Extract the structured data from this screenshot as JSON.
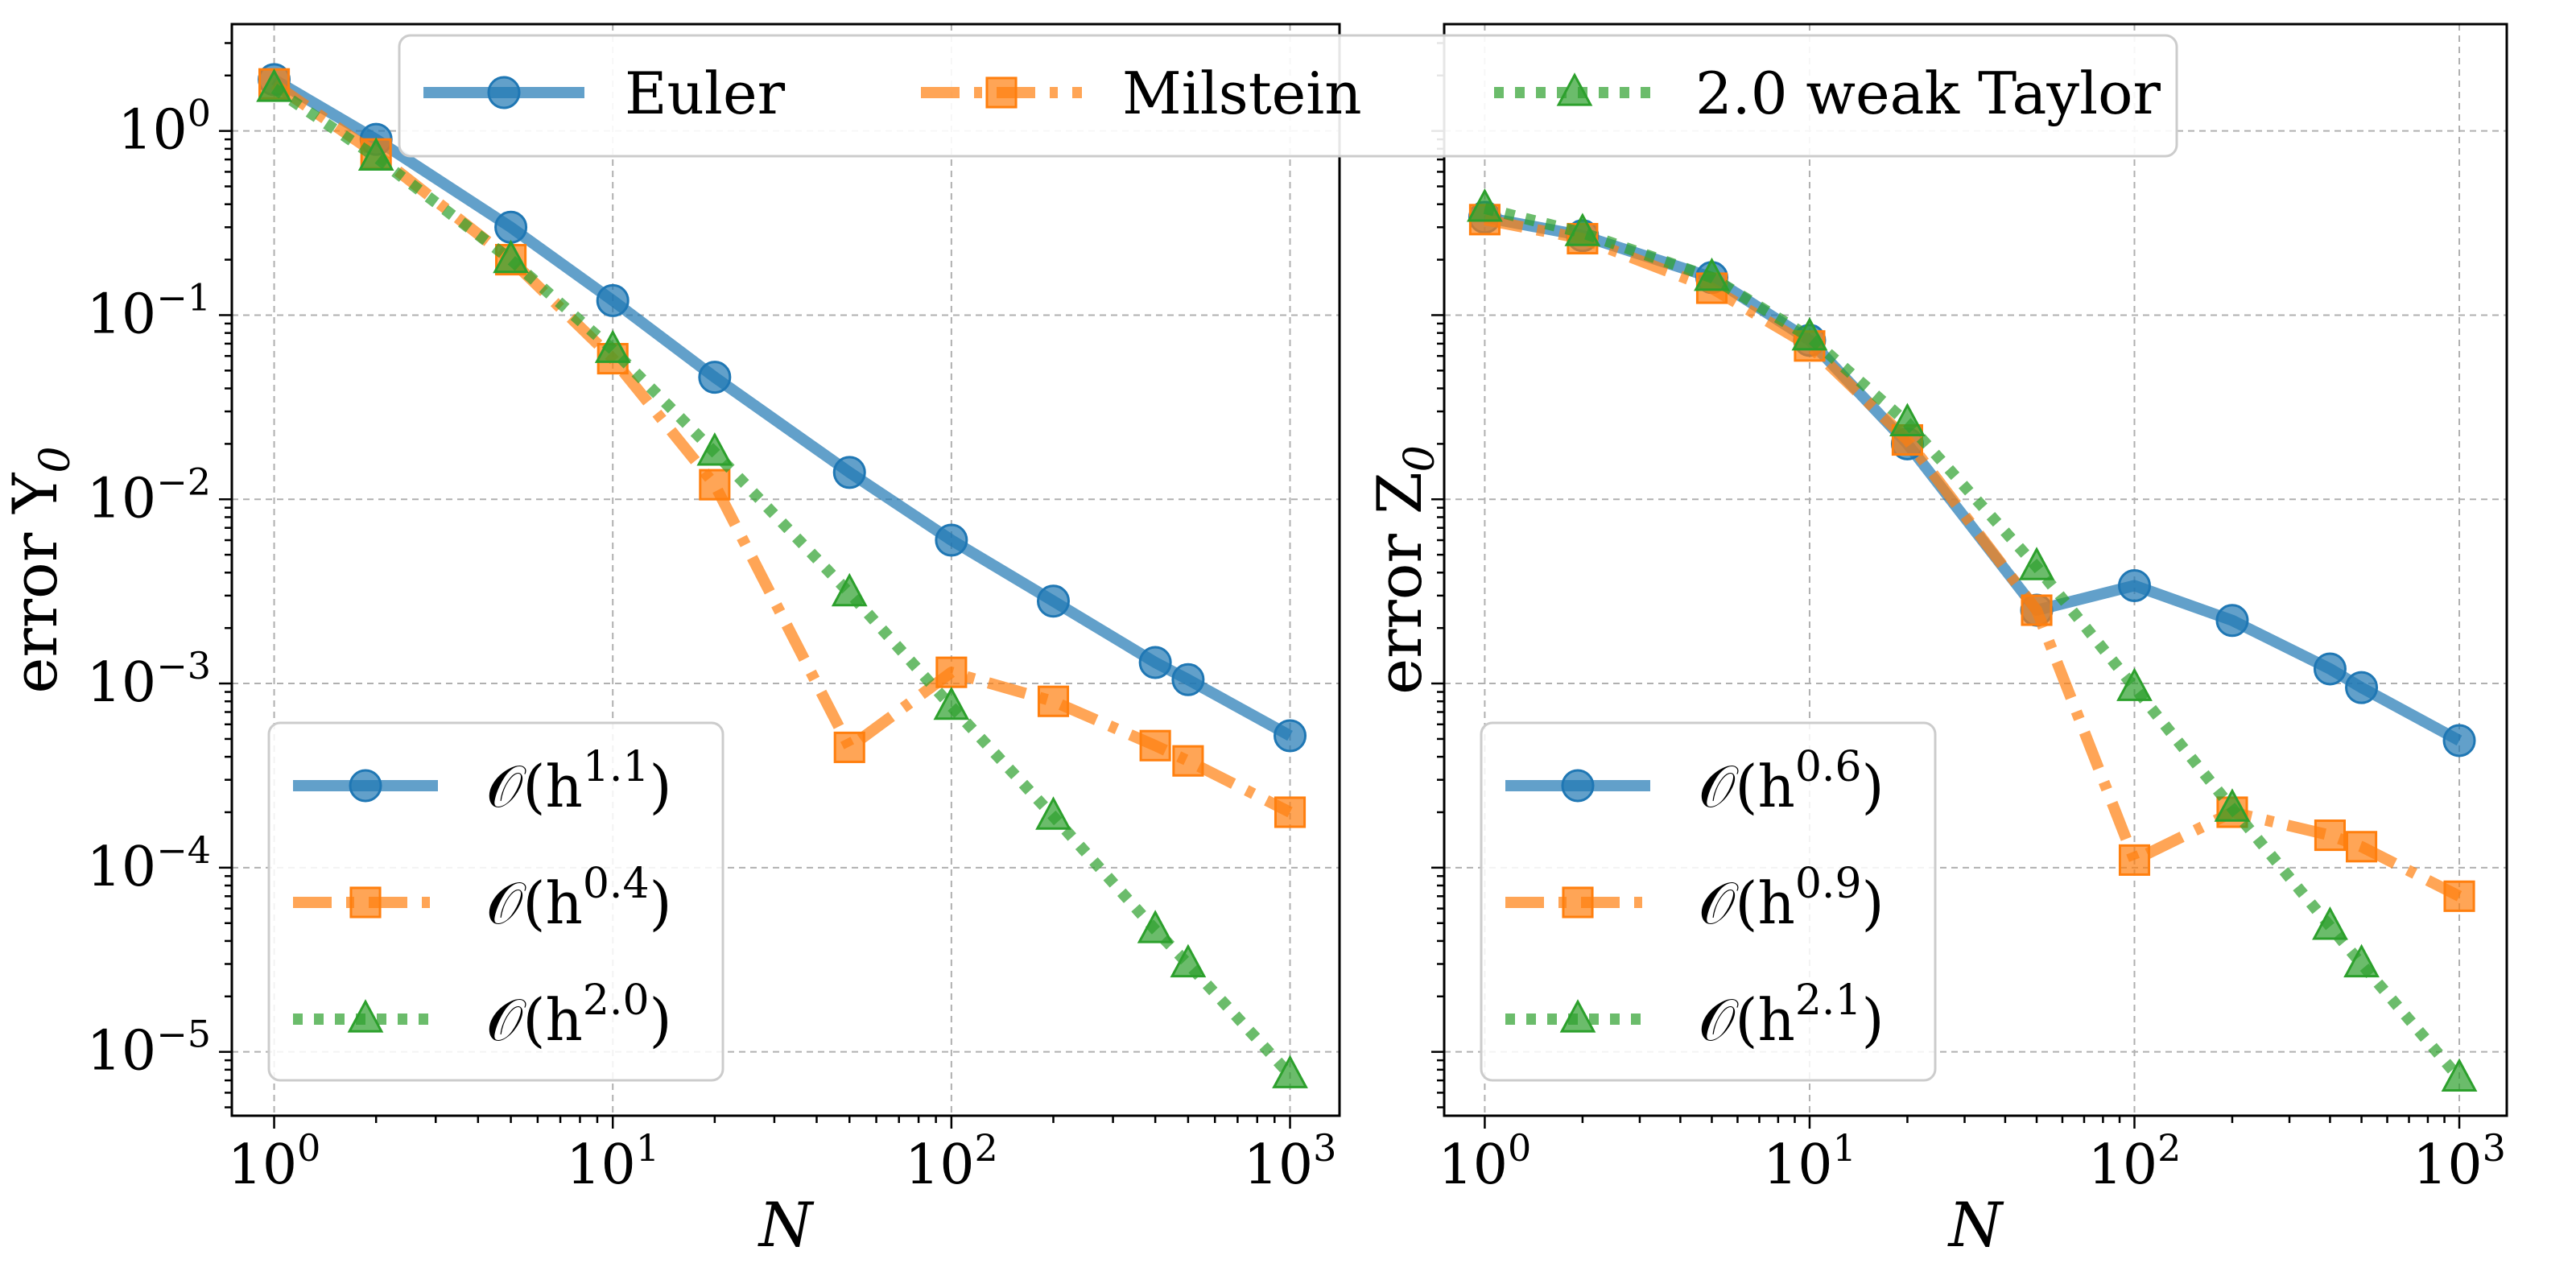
{
  "figure_legend": {
    "entries": [
      {
        "name": "Euler",
        "color": "#1f77b4",
        "marker": "circle",
        "linestyle": "solid"
      },
      {
        "name": "Milstein",
        "color": "#ff7f0e",
        "marker": "square",
        "linestyle": "dashdot"
      },
      {
        "name": "2.0 weak Taylor",
        "color": "#2ca02c",
        "marker": "triangle",
        "linestyle": "dotted"
      }
    ]
  },
  "chart_data": [
    {
      "type": "line",
      "xscale": "log",
      "yscale": "log",
      "xlabel": "N",
      "ylabel": "error Y",
      "ylabel_sub": "0",
      "xlim": [
        0.75,
        1400
      ],
      "ylim": [
        4.5e-06,
        3.8
      ],
      "grid": true,
      "xticks": [
        {
          "value": 1,
          "base": "10",
          "exp": "0"
        },
        {
          "value": 10,
          "base": "10",
          "exp": "1"
        },
        {
          "value": 100,
          "base": "10",
          "exp": "2"
        },
        {
          "value": 1000,
          "base": "10",
          "exp": "3"
        }
      ],
      "yticks": [
        {
          "value": 1,
          "base": "10",
          "exp": "0"
        },
        {
          "value": 0.1,
          "base": "10",
          "exp": "−1"
        },
        {
          "value": 0.01,
          "base": "10",
          "exp": "−2"
        },
        {
          "value": 0.001,
          "base": "10",
          "exp": "−3"
        },
        {
          "value": 0.0001,
          "base": "10",
          "exp": "−4"
        },
        {
          "value": 1e-05,
          "base": "10",
          "exp": "−5"
        }
      ],
      "series": [
        {
          "name": "Euler",
          "x": [
            1,
            2,
            5,
            10,
            20,
            50,
            100,
            200,
            400,
            500,
            1000
          ],
          "y": [
            1.9,
            0.9,
            0.3,
            0.12,
            0.046,
            0.014,
            0.006,
            0.0028,
            0.0013,
            0.00105,
            0.00052
          ]
        },
        {
          "name": "Milstein",
          "x": [
            1,
            2,
            5,
            10,
            20,
            50,
            100,
            200,
            400,
            500,
            1000
          ],
          "y": [
            1.8,
            0.75,
            0.2,
            0.058,
            0.012,
            0.00045,
            0.00115,
            0.0008,
            0.00046,
            0.00038,
            0.0002
          ]
        },
        {
          "name": "2.0 weak Taylor",
          "x": [
            1,
            2,
            5,
            10,
            20,
            50,
            100,
            200,
            400,
            500,
            1000
          ],
          "y": [
            1.7,
            0.72,
            0.2,
            0.065,
            0.018,
            0.0031,
            0.00075,
            0.00019,
            4.6e-05,
            3e-05,
            7.5e-06
          ]
        }
      ],
      "legend": {
        "placement": "lower-left",
        "entries": [
          {
            "series": "Euler",
            "prefix": "𝒪(h",
            "exp": "1.1",
            "suffix": ")"
          },
          {
            "series": "Milstein",
            "prefix": "𝒪(h",
            "exp": "0.4",
            "suffix": ")"
          },
          {
            "series": "2.0 weak Taylor",
            "prefix": "𝒪(h",
            "exp": "2.0",
            "suffix": ")"
          }
        ]
      }
    },
    {
      "type": "line",
      "xscale": "log",
      "yscale": "log",
      "xlabel": "N",
      "ylabel": "error Z",
      "ylabel_sub": "0",
      "xlim": [
        0.75,
        1400
      ],
      "ylim": [
        4.5e-06,
        3.8
      ],
      "grid": true,
      "xticks": [
        {
          "value": 1,
          "base": "10",
          "exp": "0"
        },
        {
          "value": 10,
          "base": "10",
          "exp": "1"
        },
        {
          "value": 100,
          "base": "10",
          "exp": "2"
        },
        {
          "value": 1000,
          "base": "10",
          "exp": "3"
        }
      ],
      "yticks": [],
      "series": [
        {
          "name": "Euler",
          "x": [
            1,
            2,
            5,
            10,
            20,
            50,
            100,
            200,
            400,
            500,
            1000
          ],
          "y": [
            0.34,
            0.27,
            0.16,
            0.073,
            0.02,
            0.0025,
            0.0034,
            0.0022,
            0.0012,
            0.00095,
            0.00049
          ]
        },
        {
          "name": "Milstein",
          "x": [
            1,
            2,
            5,
            10,
            20,
            50,
            100,
            200,
            400,
            500,
            1000
          ],
          "y": [
            0.33,
            0.26,
            0.14,
            0.068,
            0.021,
            0.0025,
            0.00011,
            0.0002,
            0.00015,
            0.00013,
            7e-05
          ]
        },
        {
          "name": "2.0 weak Taylor",
          "x": [
            1,
            2,
            5,
            10,
            20,
            50,
            100,
            200,
            400,
            500,
            1000
          ],
          "y": [
            0.38,
            0.28,
            0.16,
            0.076,
            0.026,
            0.0043,
            0.00095,
            0.00021,
            4.8e-05,
            3e-05,
            7.2e-06
          ]
        }
      ],
      "legend": {
        "placement": "lower-left",
        "entries": [
          {
            "series": "Euler",
            "prefix": "𝒪(h",
            "exp": "0.6",
            "suffix": ")"
          },
          {
            "series": "Milstein",
            "prefix": "𝒪(h",
            "exp": "0.9",
            "suffix": ")"
          },
          {
            "series": "2.0 weak Taylor",
            "prefix": "𝒪(h",
            "exp": "2.1",
            "suffix": ")"
          }
        ]
      }
    }
  ]
}
